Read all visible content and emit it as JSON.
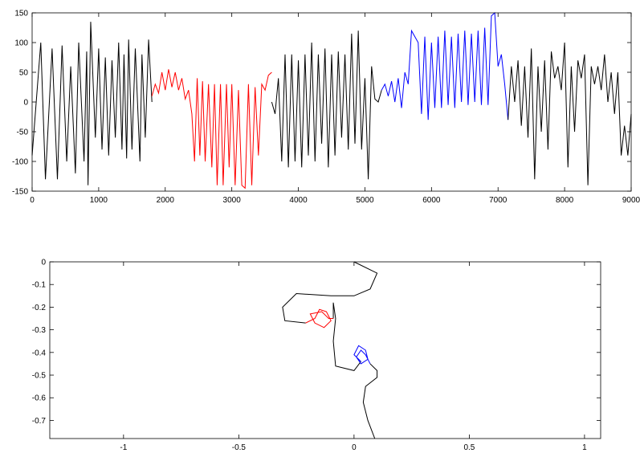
{
  "chart_data": [
    {
      "type": "line",
      "xlim": [
        0,
        9000
      ],
      "ylim": [
        -150,
        150
      ],
      "xticks": [
        0,
        1000,
        2000,
        3000,
        4000,
        5000,
        6000,
        7000,
        8000,
        9000
      ],
      "yticks": [
        -150,
        -100,
        -50,
        0,
        50,
        100,
        150
      ],
      "box": true,
      "series": [
        {
          "color": "#000000",
          "x": [
            0,
            130,
            200,
            300,
            380,
            450,
            520,
            580,
            650,
            700,
            780,
            820,
            840,
            880,
            950,
            1000,
            1050,
            1100,
            1150,
            1200,
            1250,
            1300,
            1350,
            1380,
            1420,
            1450,
            1500,
            1550,
            1620,
            1650,
            1700,
            1750,
            1800
          ],
          "values": [
            -90,
            100,
            -130,
            90,
            -130,
            95,
            -100,
            60,
            -120,
            100,
            -100,
            85,
            -140,
            135,
            -60,
            90,
            -80,
            75,
            -90,
            70,
            -60,
            100,
            -80,
            80,
            -95,
            105,
            -80,
            90,
            -100,
            80,
            -60,
            105,
            0
          ]
        },
        {
          "color": "#ff0000",
          "x": [
            1800,
            1850,
            1900,
            1950,
            2000,
            2050,
            2100,
            2150,
            2200,
            2250,
            2300,
            2350,
            2400,
            2440,
            2480,
            2520,
            2560,
            2600,
            2650,
            2700,
            2740,
            2780,
            2830,
            2870,
            2920,
            2960,
            3000,
            3050,
            3100,
            3150,
            3200,
            3250,
            3300,
            3350,
            3400,
            3450,
            3500,
            3550,
            3600
          ],
          "values": [
            10,
            30,
            15,
            50,
            20,
            55,
            25,
            50,
            20,
            40,
            5,
            20,
            -20,
            -100,
            40,
            -90,
            35,
            -100,
            30,
            -110,
            30,
            -140,
            30,
            -140,
            30,
            -110,
            30,
            -140,
            20,
            -140,
            -145,
            30,
            -140,
            25,
            -90,
            30,
            20,
            45,
            50
          ]
        },
        {
          "color": "#000000",
          "x": [
            3600,
            3650,
            3700,
            3750,
            3800,
            3850,
            3900,
            3950,
            4000,
            4050,
            4100,
            4150,
            4200,
            4250,
            4300,
            4350,
            4400,
            4450,
            4500,
            4550,
            4600,
            4650,
            4700,
            4750,
            4800,
            4850,
            4900,
            4950,
            5000,
            5050,
            5100,
            5150,
            5200,
            5250
          ],
          "values": [
            0,
            -20,
            40,
            -100,
            80,
            -110,
            80,
            -100,
            70,
            -110,
            80,
            -90,
            100,
            -100,
            80,
            -70,
            90,
            -110,
            80,
            -90,
            85,
            -60,
            80,
            -80,
            115,
            -70,
            120,
            -80,
            40,
            -130,
            60,
            5,
            0,
            20
          ]
        },
        {
          "color": "#0000ff",
          "x": [
            5250,
            5300,
            5350,
            5400,
            5450,
            5500,
            5550,
            5600,
            5650,
            5700,
            5750,
            5800,
            5850,
            5900,
            5950,
            6000,
            6050,
            6100,
            6150,
            6200,
            6250,
            6300,
            6350,
            6400,
            6450,
            6500,
            6550,
            6600,
            6650,
            6700,
            6750,
            6800,
            6850,
            6900,
            6950,
            7000,
            7050,
            7100,
            7150
          ],
          "values": [
            20,
            30,
            10,
            35,
            0,
            40,
            -10,
            50,
            30,
            120,
            110,
            100,
            -20,
            110,
            -30,
            100,
            -10,
            110,
            -10,
            120,
            -5,
            110,
            -10,
            115,
            0,
            120,
            -5,
            115,
            0,
            120,
            -5,
            125,
            -5,
            145,
            150,
            60,
            80,
            30,
            -30
          ]
        },
        {
          "color": "#000000",
          "x": [
            7150,
            7200,
            7250,
            7300,
            7350,
            7400,
            7450,
            7500,
            7550,
            7600,
            7650,
            7700,
            7750,
            7800,
            7850,
            7900,
            7950,
            8000,
            8050,
            8100,
            8150,
            8200,
            8250,
            8300,
            8350,
            8400,
            8450,
            8500,
            8550,
            8600,
            8650,
            8700,
            8750,
            8800,
            8850,
            8900,
            8950,
            9000
          ],
          "values": [
            -30,
            60,
            0,
            70,
            -40,
            60,
            -60,
            90,
            -130,
            60,
            -50,
            70,
            -80,
            85,
            40,
            60,
            20,
            100,
            -110,
            60,
            -50,
            70,
            40,
            80,
            -140,
            60,
            30,
            60,
            20,
            80,
            0,
            50,
            -20,
            50,
            -90,
            -40,
            -90,
            -20
          ]
        }
      ]
    },
    {
      "type": "line",
      "xlim": [
        -1.32,
        1.07
      ],
      "ylim": [
        -0.78,
        0
      ],
      "xticks": [
        -1,
        -0.5,
        0,
        0.5,
        1
      ],
      "yticks": [
        -0.7,
        -0.6,
        -0.5,
        -0.4,
        -0.3,
        -0.2,
        -0.1,
        0
      ],
      "box": true,
      "series": [
        {
          "color": "#000000",
          "x": [
            0,
            0.1,
            0.07,
            0,
            -0.1,
            -0.25,
            -0.31,
            -0.3,
            -0.21
          ],
          "values": [
            0,
            -0.05,
            -0.12,
            -0.15,
            -0.15,
            -0.14,
            -0.2,
            -0.26,
            -0.27
          ]
        },
        {
          "color": "#ff0000",
          "x": [
            -0.21,
            -0.17,
            -0.15,
            -0.12,
            -0.1,
            -0.13,
            -0.17,
            -0.19,
            -0.14,
            -0.11,
            -0.09
          ],
          "values": [
            -0.27,
            -0.25,
            -0.21,
            -0.22,
            -0.26,
            -0.29,
            -0.27,
            -0.23,
            -0.22,
            -0.25,
            -0.25
          ]
        },
        {
          "color": "#000000",
          "x": [
            -0.09,
            -0.09,
            -0.08,
            -0.09,
            -0.08,
            0,
            0.03
          ],
          "values": [
            -0.25,
            -0.18,
            -0.25,
            -0.35,
            -0.46,
            -0.48,
            -0.44
          ]
        },
        {
          "color": "#0000ff",
          "x": [
            0.03,
            0,
            0.02,
            0.05,
            0.06,
            0.03,
            0.01,
            0.03,
            0.05,
            0.07
          ],
          "values": [
            -0.44,
            -0.41,
            -0.37,
            -0.39,
            -0.43,
            -0.45,
            -0.42,
            -0.39,
            -0.41,
            -0.45
          ]
        },
        {
          "color": "#000000",
          "x": [
            0.07,
            0.1,
            0.1,
            0.05,
            0.04,
            0.06,
            0.09
          ],
          "values": [
            -0.45,
            -0.48,
            -0.51,
            -0.55,
            -0.62,
            -0.7,
            -0.78
          ]
        }
      ]
    }
  ]
}
